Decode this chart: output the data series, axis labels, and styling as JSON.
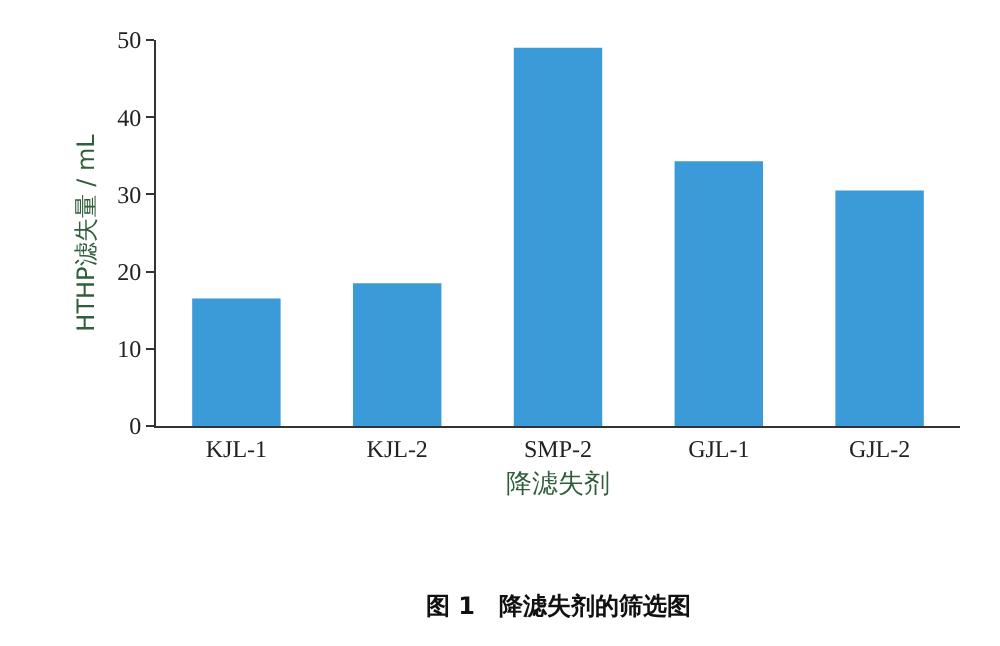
{
  "chart_data": {
    "type": "bar",
    "categories": [
      "KJL-1",
      "KJL-2",
      "SMP-2",
      "GJL-1",
      "GJL-2"
    ],
    "values": [
      16.5,
      18.5,
      49,
      34.3,
      30.5
    ],
    "color": "#3b9ad8",
    "xlabel": "降滤失剂",
    "ylabel": "HTHP滤失量 / mL",
    "ylim": [
      0,
      50
    ],
    "yticks": [
      0,
      10,
      20,
      30,
      40,
      50
    ],
    "grid": false,
    "annotations": [
      "图 1　降滤失剂的筛选图"
    ]
  }
}
